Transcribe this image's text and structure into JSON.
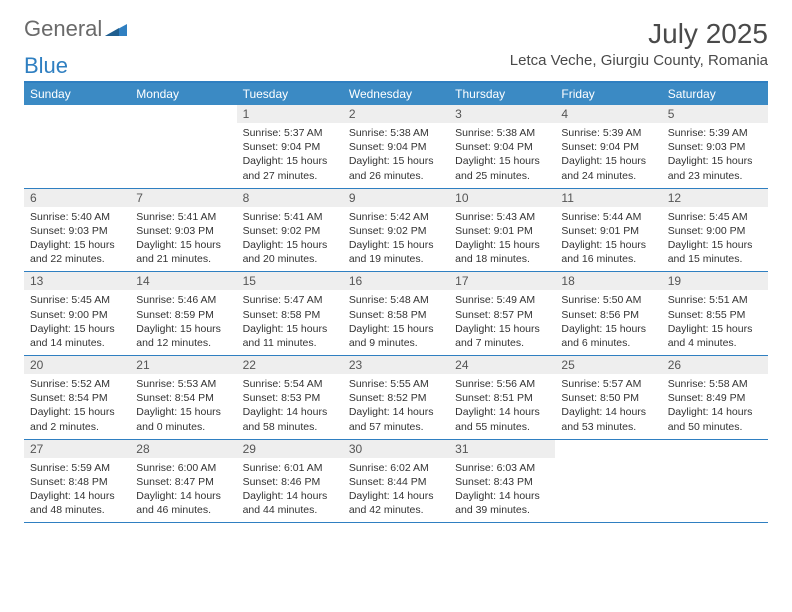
{
  "logo": {
    "word1": "General",
    "word2": "Blue"
  },
  "title": "July 2025",
  "subtitle": "Letca Veche, Giurgiu County, Romania",
  "colors": {
    "header_bar": "#3b8ac4",
    "border": "#2f7fc1",
    "daynum_bg": "#eeeeee",
    "text": "#333333",
    "title_text": "#4a4a4a",
    "logo_gray": "#6a6a6a",
    "logo_blue": "#2f7fc1"
  },
  "fontsize": {
    "title": 28,
    "subtitle": 15,
    "dow": 12,
    "daynum": 12,
    "body": 10.5
  },
  "days_of_week": [
    "Sunday",
    "Monday",
    "Tuesday",
    "Wednesday",
    "Thursday",
    "Friday",
    "Saturday"
  ],
  "weeks": [
    [
      null,
      null,
      {
        "n": "1",
        "sr": "Sunrise: 5:37 AM",
        "ss": "Sunset: 9:04 PM",
        "d1": "Daylight: 15 hours",
        "d2": "and 27 minutes."
      },
      {
        "n": "2",
        "sr": "Sunrise: 5:38 AM",
        "ss": "Sunset: 9:04 PM",
        "d1": "Daylight: 15 hours",
        "d2": "and 26 minutes."
      },
      {
        "n": "3",
        "sr": "Sunrise: 5:38 AM",
        "ss": "Sunset: 9:04 PM",
        "d1": "Daylight: 15 hours",
        "d2": "and 25 minutes."
      },
      {
        "n": "4",
        "sr": "Sunrise: 5:39 AM",
        "ss": "Sunset: 9:04 PM",
        "d1": "Daylight: 15 hours",
        "d2": "and 24 minutes."
      },
      {
        "n": "5",
        "sr": "Sunrise: 5:39 AM",
        "ss": "Sunset: 9:03 PM",
        "d1": "Daylight: 15 hours",
        "d2": "and 23 minutes."
      }
    ],
    [
      {
        "n": "6",
        "sr": "Sunrise: 5:40 AM",
        "ss": "Sunset: 9:03 PM",
        "d1": "Daylight: 15 hours",
        "d2": "and 22 minutes."
      },
      {
        "n": "7",
        "sr": "Sunrise: 5:41 AM",
        "ss": "Sunset: 9:03 PM",
        "d1": "Daylight: 15 hours",
        "d2": "and 21 minutes."
      },
      {
        "n": "8",
        "sr": "Sunrise: 5:41 AM",
        "ss": "Sunset: 9:02 PM",
        "d1": "Daylight: 15 hours",
        "d2": "and 20 minutes."
      },
      {
        "n": "9",
        "sr": "Sunrise: 5:42 AM",
        "ss": "Sunset: 9:02 PM",
        "d1": "Daylight: 15 hours",
        "d2": "and 19 minutes."
      },
      {
        "n": "10",
        "sr": "Sunrise: 5:43 AM",
        "ss": "Sunset: 9:01 PM",
        "d1": "Daylight: 15 hours",
        "d2": "and 18 minutes."
      },
      {
        "n": "11",
        "sr": "Sunrise: 5:44 AM",
        "ss": "Sunset: 9:01 PM",
        "d1": "Daylight: 15 hours",
        "d2": "and 16 minutes."
      },
      {
        "n": "12",
        "sr": "Sunrise: 5:45 AM",
        "ss": "Sunset: 9:00 PM",
        "d1": "Daylight: 15 hours",
        "d2": "and 15 minutes."
      }
    ],
    [
      {
        "n": "13",
        "sr": "Sunrise: 5:45 AM",
        "ss": "Sunset: 9:00 PM",
        "d1": "Daylight: 15 hours",
        "d2": "and 14 minutes."
      },
      {
        "n": "14",
        "sr": "Sunrise: 5:46 AM",
        "ss": "Sunset: 8:59 PM",
        "d1": "Daylight: 15 hours",
        "d2": "and 12 minutes."
      },
      {
        "n": "15",
        "sr": "Sunrise: 5:47 AM",
        "ss": "Sunset: 8:58 PM",
        "d1": "Daylight: 15 hours",
        "d2": "and 11 minutes."
      },
      {
        "n": "16",
        "sr": "Sunrise: 5:48 AM",
        "ss": "Sunset: 8:58 PM",
        "d1": "Daylight: 15 hours",
        "d2": "and 9 minutes."
      },
      {
        "n": "17",
        "sr": "Sunrise: 5:49 AM",
        "ss": "Sunset: 8:57 PM",
        "d1": "Daylight: 15 hours",
        "d2": "and 7 minutes."
      },
      {
        "n": "18",
        "sr": "Sunrise: 5:50 AM",
        "ss": "Sunset: 8:56 PM",
        "d1": "Daylight: 15 hours",
        "d2": "and 6 minutes."
      },
      {
        "n": "19",
        "sr": "Sunrise: 5:51 AM",
        "ss": "Sunset: 8:55 PM",
        "d1": "Daylight: 15 hours",
        "d2": "and 4 minutes."
      }
    ],
    [
      {
        "n": "20",
        "sr": "Sunrise: 5:52 AM",
        "ss": "Sunset: 8:54 PM",
        "d1": "Daylight: 15 hours",
        "d2": "and 2 minutes."
      },
      {
        "n": "21",
        "sr": "Sunrise: 5:53 AM",
        "ss": "Sunset: 8:54 PM",
        "d1": "Daylight: 15 hours",
        "d2": "and 0 minutes."
      },
      {
        "n": "22",
        "sr": "Sunrise: 5:54 AM",
        "ss": "Sunset: 8:53 PM",
        "d1": "Daylight: 14 hours",
        "d2": "and 58 minutes."
      },
      {
        "n": "23",
        "sr": "Sunrise: 5:55 AM",
        "ss": "Sunset: 8:52 PM",
        "d1": "Daylight: 14 hours",
        "d2": "and 57 minutes."
      },
      {
        "n": "24",
        "sr": "Sunrise: 5:56 AM",
        "ss": "Sunset: 8:51 PM",
        "d1": "Daylight: 14 hours",
        "d2": "and 55 minutes."
      },
      {
        "n": "25",
        "sr": "Sunrise: 5:57 AM",
        "ss": "Sunset: 8:50 PM",
        "d1": "Daylight: 14 hours",
        "d2": "and 53 minutes."
      },
      {
        "n": "26",
        "sr": "Sunrise: 5:58 AM",
        "ss": "Sunset: 8:49 PM",
        "d1": "Daylight: 14 hours",
        "d2": "and 50 minutes."
      }
    ],
    [
      {
        "n": "27",
        "sr": "Sunrise: 5:59 AM",
        "ss": "Sunset: 8:48 PM",
        "d1": "Daylight: 14 hours",
        "d2": "and 48 minutes."
      },
      {
        "n": "28",
        "sr": "Sunrise: 6:00 AM",
        "ss": "Sunset: 8:47 PM",
        "d1": "Daylight: 14 hours",
        "d2": "and 46 minutes."
      },
      {
        "n": "29",
        "sr": "Sunrise: 6:01 AM",
        "ss": "Sunset: 8:46 PM",
        "d1": "Daylight: 14 hours",
        "d2": "and 44 minutes."
      },
      {
        "n": "30",
        "sr": "Sunrise: 6:02 AM",
        "ss": "Sunset: 8:44 PM",
        "d1": "Daylight: 14 hours",
        "d2": "and 42 minutes."
      },
      {
        "n": "31",
        "sr": "Sunrise: 6:03 AM",
        "ss": "Sunset: 8:43 PM",
        "d1": "Daylight: 14 hours",
        "d2": "and 39 minutes."
      },
      null,
      null
    ]
  ]
}
